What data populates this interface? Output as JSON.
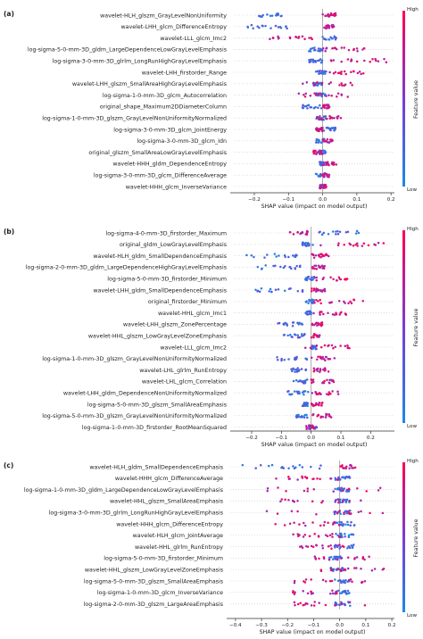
{
  "panels": [
    {
      "letter": "(a)",
      "xlabel": "SHAP value (impact on model output)"
    },
    {
      "letter": "(b)",
      "xlabel": "SHAP value (impact on model output)"
    },
    {
      "letter": "(c)",
      "xlabel": "SHAP value (impact on model output)"
    }
  ],
  "colorbar": {
    "title": "Feature value",
    "high": "High",
    "low": "Low",
    "low_color": "#1e88e5",
    "high_color": "#ff0052"
  },
  "chart_data": [
    {
      "type": "scatter",
      "subtype": "shap-beeswarm",
      "xlabel": "SHAP value (impact on model output)",
      "xlim": [
        -0.26,
        0.21
      ],
      "xticks": [
        -0.2,
        -0.1,
        0.0,
        0.1,
        0.2
      ],
      "xtick_labels": [
        "−0.2",
        "−0.1",
        "0.0",
        "0.1",
        "0.2"
      ],
      "features": [
        {
          "name": "wavelet-HLH_glszm_GrayLevelNonUniformity",
          "low_side": [
            -0.2,
            -0.12
          ],
          "high_side": [
            0.0,
            0.04
          ]
        },
        {
          "name": "wavelet-LHH_glcm_DifferenceEntropy",
          "low_side": [
            -0.22,
            -0.08
          ],
          "high_side": [
            0.0,
            0.04
          ]
        },
        {
          "name": "wavelet-LLL_glcm_Imc2",
          "low_side": [
            -0.01,
            0.04
          ],
          "high_side": [
            -0.16,
            -0.03
          ]
        },
        {
          "name": "log-sigma-5-0-mm-3D_gldm_LargeDependenceLowGrayLevelEmphasis",
          "low_side": [
            -0.04,
            0.0
          ],
          "high_side": [
            0.0,
            0.13
          ]
        },
        {
          "name": "log-sigma-3-0-mm-3D_glrlm_LongRunHighGrayLevelEmphasis",
          "low_side": [
            -0.04,
            0.0
          ],
          "high_side": [
            0.02,
            0.19
          ]
        },
        {
          "name": "wavelet-LHH_firstorder_Range",
          "low_side": [
            -0.02,
            0.01
          ],
          "high_side": [
            0.02,
            0.12
          ]
        },
        {
          "name": "wavelet-LHH_glszm_SmallAreaHighGrayLevelEmphasis",
          "low_side": [
            -0.03,
            0.0
          ],
          "high_side": [
            -0.06,
            0.1
          ]
        },
        {
          "name": "log-sigma-1-0-mm-3D_glcm_Autocorrelation",
          "low_side": [
            -0.02,
            0.01
          ],
          "high_side": [
            -0.07,
            0.1
          ]
        },
        {
          "name": "original_shape_Maximum2DDiameterColumn",
          "low_side": [
            -0.06,
            0.0
          ],
          "high_side": [
            0.0,
            0.02
          ]
        },
        {
          "name": "log-sigma-1-0-mm-3D_glszm_GrayLevelNonUniformityNormalized",
          "low_side": [
            -0.02,
            0.01
          ],
          "high_side": [
            -0.02,
            0.06
          ]
        },
        {
          "name": "log-sigma-3-0-mm-3D_glcm_JointEnergy",
          "low_side": [
            0.0,
            0.04
          ],
          "high_side": [
            -0.02,
            0.0
          ]
        },
        {
          "name": "log-sigma-3-0-mm-3D_glcm_Idn",
          "low_side": [
            -0.02,
            0.01
          ],
          "high_side": [
            0.0,
            0.03
          ]
        },
        {
          "name": "original_glszm_SmallAreaLowGrayLevelEmphasis",
          "low_side": [
            -0.01,
            0.01
          ],
          "high_side": [
            -0.03,
            0.0
          ]
        },
        {
          "name": "wavelet-HHH_gldm_DependenceEntropy",
          "low_side": [
            -0.01,
            0.01
          ],
          "high_side": [
            0.0,
            0.04
          ]
        },
        {
          "name": "log-sigma-3-0-mm-3D_glcm_DifferenceAverage",
          "low_side": [
            -0.02,
            0.01
          ],
          "high_side": [
            0.0,
            0.02
          ]
        },
        {
          "name": "wavelet-HHH_glcm_InverseVariance",
          "low_side": [
            -0.01,
            0.01
          ],
          "high_side": [
            -0.01,
            0.01
          ]
        }
      ]
    },
    {
      "type": "scatter",
      "subtype": "shap-beeswarm",
      "xlabel": "SHAP value (impact on model output)",
      "xlim": [
        -0.26,
        0.28
      ],
      "xticks": [
        -0.2,
        -0.1,
        0.0,
        0.1,
        0.2
      ],
      "xtick_labels": [
        "−0.2",
        "−0.1",
        "0.0",
        "0.1",
        "0.2"
      ],
      "features": [
        {
          "name": "log-sigma-4-0-mm-3D_firstorder_Maximum",
          "low_side": [
            0.02,
            0.18
          ],
          "high_side": [
            -0.08,
            -0.01
          ]
        },
        {
          "name": "original_gldm_LowGrayLevelEmphasis",
          "low_side": [
            -0.03,
            0.01
          ],
          "high_side": [
            0.02,
            0.26
          ]
        },
        {
          "name": "wavelet-HLH_gldm_SmallDependenceEmphasis",
          "low_side": [
            -0.22,
            -0.03
          ],
          "high_side": [
            0.0,
            0.06
          ]
        },
        {
          "name": "log-sigma-2-0-mm-3D_gldm_LargeDependenceHighGrayLevelEmphasis",
          "low_side": [
            -0.18,
            -0.02
          ],
          "high_side": [
            0.0,
            0.05
          ]
        },
        {
          "name": "log-sigma-5-0-mm-3D_firstorder_Minimum",
          "low_side": [
            -0.02,
            0.01
          ],
          "high_side": [
            0.01,
            0.15
          ]
        },
        {
          "name": "wavelet-LHH_gldm_SmallDependenceEmphasis",
          "low_side": [
            -0.2,
            -0.02
          ],
          "high_side": [
            0.0,
            0.05
          ]
        },
        {
          "name": "original_firstorder_Minimum",
          "low_side": [
            -0.02,
            0.01
          ],
          "high_side": [
            0.01,
            0.18
          ]
        },
        {
          "name": "wavelet-HHL_glcm_Imc1",
          "low_side": [
            -0.02,
            0.0
          ],
          "high_side": [
            0.0,
            0.12
          ]
        },
        {
          "name": "wavelet-LHH_glszm_ZonePercentage",
          "low_side": [
            -0.12,
            -0.02
          ],
          "high_side": [
            0.0,
            0.04
          ]
        },
        {
          "name": "wavelet-HHL_glszm_LowGrayLevelZoneEmphasis",
          "low_side": [
            -0.1,
            -0.02
          ],
          "high_side": [
            0.0,
            0.03
          ]
        },
        {
          "name": "wavelet-LLL_glcm_Imc2",
          "low_side": [
            0.0,
            0.02
          ],
          "high_side": [
            -0.02,
            0.13
          ]
        },
        {
          "name": "log-sigma-1-0-mm-3D_glszm_GrayLevelNonUniformityNormalized",
          "low_side": [
            -0.13,
            -0.01
          ],
          "high_side": [
            0.0,
            0.08
          ]
        },
        {
          "name": "wavelet-LHL_glrlm_RunEntropy",
          "low_side": [
            -0.07,
            -0.01
          ],
          "high_side": [
            0.0,
            0.06
          ]
        },
        {
          "name": "wavelet-LHL_glcm_Correlation",
          "low_side": [
            -0.06,
            -0.01
          ],
          "high_side": [
            0.0,
            0.08
          ]
        },
        {
          "name": "wavelet-LHH_gldm_DependenceNonUniformityNormalized",
          "low_side": [
            -0.08,
            -0.01
          ],
          "high_side": [
            0.0,
            0.1
          ]
        },
        {
          "name": "log-sigma-5-0-mm-3D_glszm_SmallAreaEmphasis",
          "low_side": [
            -0.03,
            0.0
          ],
          "high_side": [
            0.0,
            0.04
          ]
        },
        {
          "name": "log-sigma-5-0-mm-3D_glszm_GrayLevelNonUniformityNormalized",
          "low_side": [
            -0.05,
            -0.01
          ],
          "high_side": [
            0.0,
            0.07
          ]
        },
        {
          "name": "log-sigma-1-0-mm-3D_firstorder_RootMeanSquared",
          "low_side": [
            -0.01,
            0.02
          ],
          "high_side": [
            -0.02,
            0.01
          ]
        }
      ]
    },
    {
      "type": "scatter",
      "subtype": "shap-beeswarm",
      "xlabel": "SHAP value (impact on model output)",
      "xlim": [
        -0.42,
        0.21
      ],
      "xticks": [
        -0.4,
        -0.3,
        -0.2,
        -0.1,
        0.0,
        0.1,
        0.2
      ],
      "xtick_labels": [
        "−0.4",
        "−0.3",
        "−0.2",
        "−0.1",
        "0.0",
        "0.1",
        "0.2"
      ],
      "features": [
        {
          "name": "wavelet-HLH_gldm_SmallDependenceEmphasis",
          "low_side": [
            -0.4,
            -0.05
          ],
          "high_side": [
            0.0,
            0.06
          ]
        },
        {
          "name": "wavelet-HHH_glcm_DifferenceAverage",
          "low_side": [
            -0.02,
            0.04
          ],
          "high_side": [
            -0.25,
            0.0
          ]
        },
        {
          "name": "log-sigma-1-0-mm-3D_gldm_LargeDependenceLowGrayLevelEmphasis",
          "low_side": [
            -0.02,
            0.04
          ],
          "high_side": [
            -0.3,
            0.18
          ]
        },
        {
          "name": "wavelet-HHL_glszm_SmallAreaEmphasis",
          "low_side": [
            -0.02,
            0.04
          ],
          "high_side": [
            -0.25,
            0.12
          ]
        },
        {
          "name": "log-sigma-3-0-mm-3D_glrlm_LongRunHighGrayLevelEmphasis",
          "low_side": [
            -0.02,
            0.04
          ],
          "high_side": [
            -0.3,
            0.18
          ]
        },
        {
          "name": "wavelet-HHH_glcm_DifferenceEntropy",
          "low_side": [
            -0.02,
            0.06
          ],
          "high_side": [
            -0.25,
            0.0
          ]
        },
        {
          "name": "wavelet-HLH_glcm_JointAverage",
          "low_side": [
            -0.02,
            0.06
          ],
          "high_side": [
            -0.18,
            0.0
          ]
        },
        {
          "name": "wavelet-HHL_glrlm_RunEntropy",
          "low_side": [
            -0.02,
            0.06
          ],
          "high_side": [
            -0.16,
            0.02
          ]
        },
        {
          "name": "log-sigma-5-0-mm-3D_firstorder_Minimum",
          "low_side": [
            -0.04,
            0.02
          ],
          "high_side": [
            -0.1,
            0.12
          ]
        },
        {
          "name": "wavelet-HHL_glszm_LowGrayLevelZoneEmphasis",
          "low_side": [
            -0.04,
            0.02
          ],
          "high_side": [
            -0.08,
            0.18
          ]
        },
        {
          "name": "log-sigma-5-0-mm-3D_glszm_SmallAreaEmphasis",
          "low_side": [
            -0.02,
            0.04
          ],
          "high_side": [
            -0.2,
            0.1
          ]
        },
        {
          "name": "log-sigma-1-0-mm-3D_glcm_InverseVariance",
          "low_side": [
            -0.02,
            0.04
          ],
          "high_side": [
            -0.18,
            0.0
          ]
        },
        {
          "name": "log-sigma-2-0-mm-3D_glszm_LargeAreaEmphasis",
          "low_side": [
            -0.02,
            0.04
          ],
          "high_side": [
            -0.18,
            0.1
          ]
        }
      ]
    }
  ]
}
